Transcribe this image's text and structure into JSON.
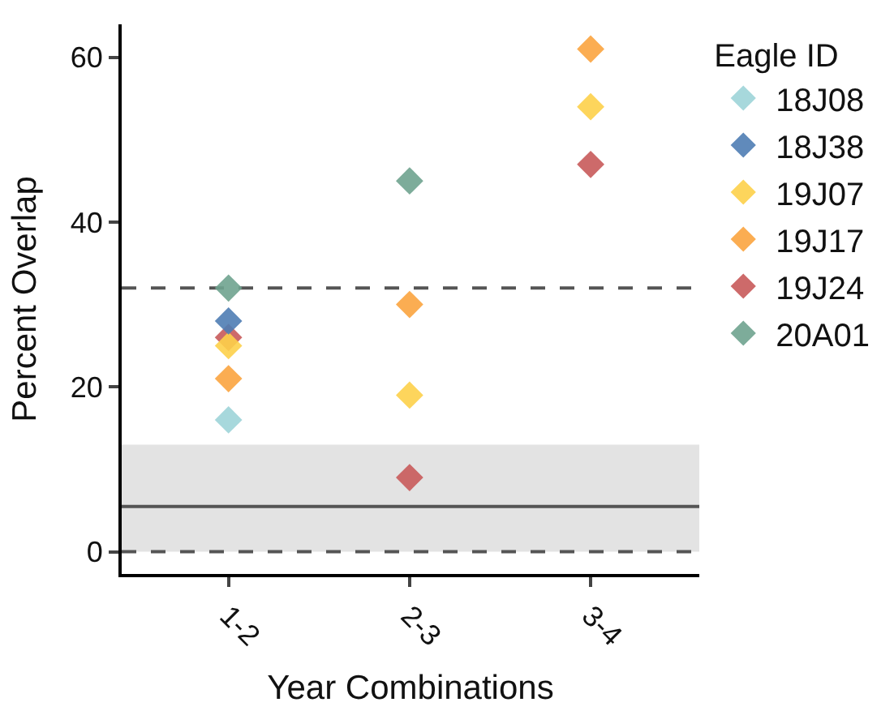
{
  "chart_data": {
    "type": "scatter",
    "xlabel": "Year Combinations",
    "ylabel": "Percent Overlap",
    "legend_title": "Eagle ID",
    "categories": [
      "1-2",
      "2-3",
      "3-4"
    ],
    "series": [
      {
        "name": "18J08",
        "color": "#9dd4d8",
        "values": [
          16,
          null,
          null
        ]
      },
      {
        "name": "18J38",
        "color": "#4f7db4",
        "values": [
          28,
          null,
          null
        ]
      },
      {
        "name": "19J07",
        "color": "#fdd04a",
        "values": [
          25,
          19,
          54
        ]
      },
      {
        "name": "19J17",
        "color": "#fba43f",
        "values": [
          21,
          30,
          61
        ]
      },
      {
        "name": "19J24",
        "color": "#c85a5a",
        "values": [
          26,
          9,
          47
        ]
      },
      {
        "name": "20A01",
        "color": "#6fa38f",
        "values": [
          32,
          45,
          null
        ]
      }
    ],
    "ylim": [
      -2.7,
      64
    ],
    "yticks": [
      0,
      20,
      40,
      60
    ],
    "ref_lines": [
      {
        "axis": "y",
        "value": 32,
        "line_style": "dashed",
        "color": "#555555"
      },
      {
        "axis": "y",
        "value": 0,
        "line_style": "dashed",
        "color": "#555555"
      },
      {
        "axis": "y",
        "value": 5.5,
        "line_style": "solid",
        "color": "#555555"
      }
    ],
    "bands": [
      {
        "axis": "y",
        "from": 0,
        "to": 13,
        "color": "#e3e3e3"
      }
    ],
    "marker": "diamond",
    "grid": false,
    "legend": "right"
  }
}
